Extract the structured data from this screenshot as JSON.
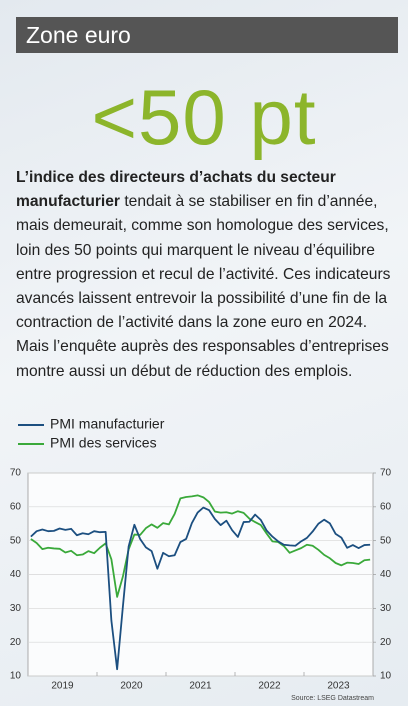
{
  "header": {
    "title": "Zone euro"
  },
  "headline": "<50 pt",
  "paragraph": {
    "lead": "L’indice des directeurs d’achats du secteur manufacturier",
    "body": "tendait à se stabiliser en fin d’année, mais demeurait, comme son homologue des services, loin des 50 points qui marquent le niveau d’équilibre entre progression et recul de l’activité. Ces indicateurs avancés laissent entrevoir la possibilité d’une fin de la contraction de l’activité dans la zone euro en 2024. Mais l’enquête auprès des responsables d’entreprises montre aussi un début de réduction des emplois."
  },
  "chart_data": {
    "type": "line",
    "categories": [
      "2019",
      null,
      null,
      null,
      null,
      null,
      null,
      null,
      null,
      null,
      null,
      null,
      "2020",
      null,
      null,
      null,
      null,
      null,
      null,
      null,
      null,
      null,
      null,
      null,
      "2021",
      null,
      null,
      null,
      null,
      null,
      null,
      null,
      null,
      null,
      null,
      null,
      "2022",
      null,
      null,
      null,
      null,
      null,
      null,
      null,
      null,
      null,
      null,
      null,
      "2023",
      null,
      null,
      null,
      null,
      null,
      null,
      null,
      null,
      null,
      null,
      null
    ],
    "series": [
      {
        "name": "PMI manufacturier",
        "color": "#1c4f80",
        "values": [
          51.2,
          52.8,
          53.3,
          52.8,
          52.9,
          53.6,
          53.2,
          53.5,
          51.6,
          52.2,
          51.9,
          52.8,
          52.5,
          52.6,
          26.4,
          12.0,
          30.5,
          48.3,
          54.7,
          50.5,
          48.0,
          46.9,
          41.7,
          46.4,
          45.4,
          45.7,
          49.6,
          50.5,
          55.2,
          58.3,
          59.8,
          59.0,
          56.4,
          54.6,
          55.9,
          53.1,
          51.1,
          55.5,
          55.6,
          57.7,
          56.1,
          53.0,
          51.2,
          49.8,
          48.8,
          48.6,
          48.5,
          49.8,
          50.8,
          52.7,
          55.0,
          56.2,
          55.1,
          52.0,
          50.9,
          47.9,
          48.7,
          47.8,
          48.7,
          48.8
        ]
      },
      {
        "name": "PMI des services",
        "color": "#3aa93a",
        "values": [
          50.5,
          49.3,
          47.5,
          47.9,
          47.7,
          47.6,
          46.5,
          47.0,
          45.7,
          45.9,
          46.9,
          46.3,
          47.9,
          49.2,
          44.5,
          33.4,
          39.4,
          47.4,
          51.8,
          51.7,
          53.7,
          54.8,
          53.8,
          55.2,
          54.8,
          57.9,
          62.5,
          62.9,
          63.1,
          63.4,
          62.8,
          61.4,
          58.6,
          58.3,
          58.4,
          58.0,
          58.7,
          58.2,
          56.5,
          55.5,
          54.6,
          52.1,
          49.8,
          49.6,
          48.4,
          46.4,
          47.1,
          47.8,
          48.8,
          48.5,
          47.3,
          45.8,
          44.8,
          43.4,
          42.7,
          43.5,
          43.4,
          43.1,
          44.2,
          44.4
        ]
      }
    ],
    "ylim": [
      10,
      70
    ],
    "yticks": [
      10,
      20,
      30,
      40,
      50,
      60,
      70
    ],
    "y2lim": [
      10,
      70
    ],
    "y2ticks": [
      10,
      20,
      30,
      40,
      50,
      60,
      70
    ],
    "grid": true,
    "source": "Source: LSEG Datastream"
  }
}
